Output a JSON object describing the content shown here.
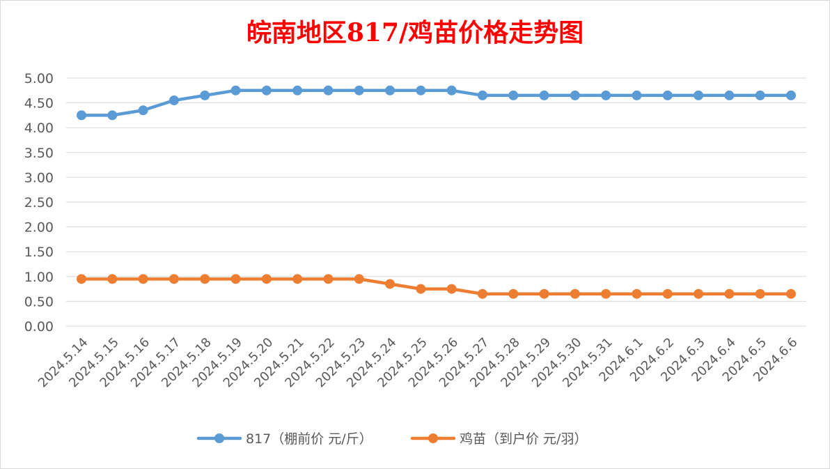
{
  "chart_data": {
    "type": "line",
    "title": "皖南地区817/鸡苗价格走势图",
    "categories": [
      "2024.5.14",
      "2024.5.15",
      "2024.5.16",
      "2024.5.17",
      "2024.5.18",
      "2024.5.19",
      "2024.5.20",
      "2024.5.21",
      "2024.5.22",
      "2024.5.23",
      "2024.5.24",
      "2024.5.25",
      "2024.5.26",
      "2024.5.27",
      "2024.5.28",
      "2024.5.29",
      "2024.5.30",
      "2024.5.31",
      "2024.6.1",
      "2024.6.2",
      "2024.6.3",
      "2024.6.4",
      "2024.6.5",
      "2024.6.6"
    ],
    "y_ticks": [
      "0.00",
      "0.50",
      "1.00",
      "1.50",
      "2.00",
      "2.50",
      "3.00",
      "3.50",
      "4.00",
      "4.50",
      "5.00"
    ],
    "ylim": [
      0,
      5
    ],
    "grid": true,
    "legend_position": "bottom",
    "series": [
      {
        "name": "817（棚前价 元/斤）",
        "color": "#5b9bd5",
        "values": [
          4.25,
          4.25,
          4.35,
          4.55,
          4.65,
          4.75,
          4.75,
          4.75,
          4.75,
          4.75,
          4.75,
          4.75,
          4.75,
          4.65,
          4.65,
          4.65,
          4.65,
          4.65,
          4.65,
          4.65,
          4.65,
          4.65,
          4.65,
          4.65
        ]
      },
      {
        "name": "鸡苗（到户价 元/羽）",
        "color": "#ed7d31",
        "values": [
          0.95,
          0.95,
          0.95,
          0.95,
          0.95,
          0.95,
          0.95,
          0.95,
          0.95,
          0.95,
          0.85,
          0.75,
          0.75,
          0.65,
          0.65,
          0.65,
          0.65,
          0.65,
          0.65,
          0.65,
          0.65,
          0.65,
          0.65,
          0.65
        ]
      }
    ]
  }
}
